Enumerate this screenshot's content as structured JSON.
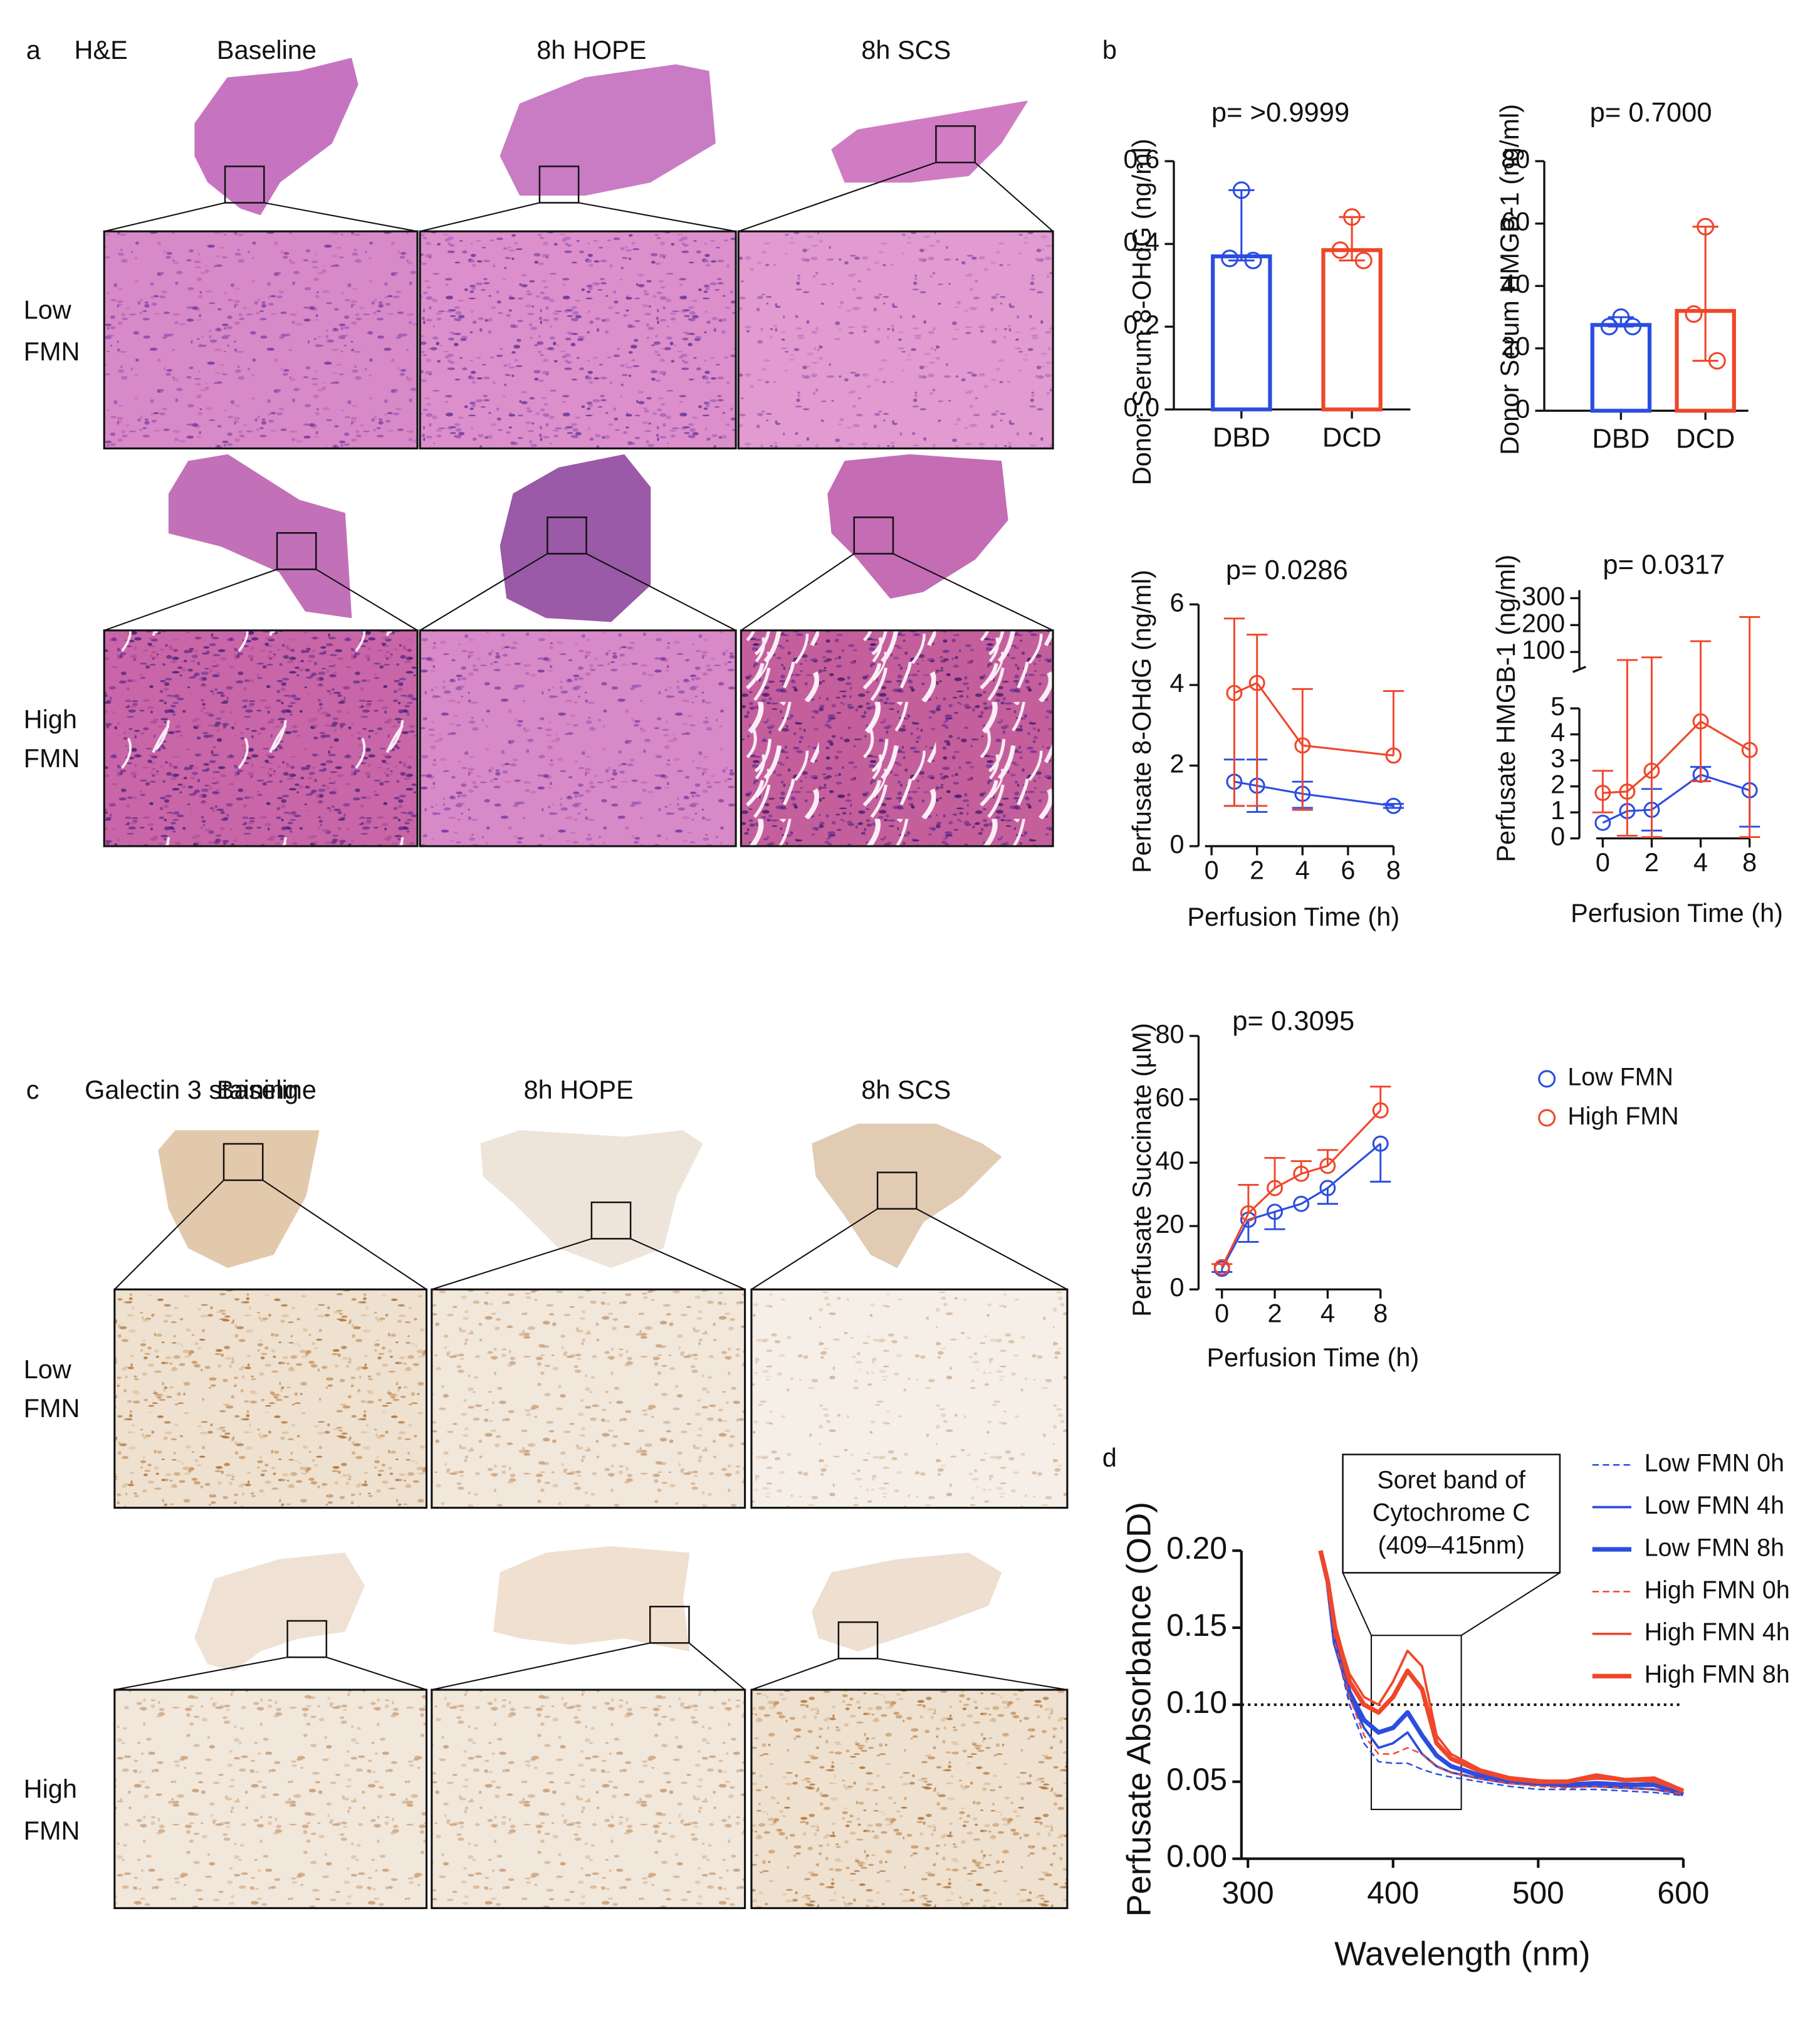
{
  "histology": [
    {
      "label": "a",
      "title": "H&E",
      "columns": [
        "Baseline",
        "8h HOPE",
        "8h SCS"
      ],
      "rows": [
        [
          "Low",
          "FMN"
        ],
        [
          "High",
          "FMN"
        ]
      ]
    },
    {
      "label": "c",
      "title": "Galectin 3 staining",
      "columns": [
        "Baseline",
        "8h HOPE",
        "8h SCS"
      ],
      "rows": [
        [
          "Low",
          "FMN"
        ],
        [
          "High",
          "FMN"
        ]
      ]
    }
  ],
  "panel_labels": [
    "b",
    "d"
  ],
  "chart_data": [
    {
      "type": "bar",
      "title": "p= >0.9999",
      "ylabel": "Donor Serum 8-OHdG (ng/ml)",
      "categories": [
        "DBD",
        "DCD"
      ],
      "values": [
        0.37,
        0.385
      ],
      "colors": [
        "#2b4de0",
        "#f0462a"
      ],
      "points": [
        [
          0.53,
          0.365,
          0.36
        ],
        [
          0.465,
          0.385,
          0.36
        ]
      ],
      "ylim": [
        0,
        0.6
      ],
      "yticks": [
        {
          "value": 0,
          "label": "0.0"
        },
        0.2,
        0.4,
        0.6
      ]
    },
    {
      "type": "bar",
      "title": "p= 0.7000",
      "ylabel": "Donor Serum HMGB-1 (ng/ml)",
      "categories": [
        "DBD",
        "DCD"
      ],
      "values": [
        27.5,
        32
      ],
      "colors": [
        "#2b4de0",
        "#f0462a"
      ],
      "points": [
        [
          30,
          27,
          27
        ],
        [
          59,
          31,
          16
        ]
      ],
      "ylim": [
        0,
        80
      ],
      "yticks": [
        0,
        20,
        40,
        60,
        80
      ]
    },
    {
      "type": "line",
      "title": "p= 0.0286",
      "xlabel": "Perfusion Time (h)",
      "ylabel": "Perfusate 8-OHdG (ng/ml)",
      "x": [
        1,
        2,
        4,
        8
      ],
      "markers": true,
      "series": [
        {
          "color": "#2b4de0",
          "values": [
            1.6,
            1.5,
            1.3,
            1.0
          ],
          "upper": [
            2.15,
            2.15,
            1.6,
            1.05
          ],
          "lower": [
            1.0,
            0.85,
            0.95,
            0.95
          ]
        },
        {
          "color": "#f0462a",
          "values": [
            3.8,
            4.05,
            2.5,
            2.25
          ],
          "upper": [
            5.65,
            5.25,
            3.9,
            3.85
          ],
          "lower": [
            1.0,
            1.0,
            0.9,
            null
          ]
        }
      ],
      "xlim": [
        0,
        8
      ],
      "xticks": [
        0,
        2,
        4,
        6,
        8
      ],
      "ylim": [
        0,
        6
      ],
      "yticks": [
        0,
        2,
        4,
        6
      ]
    },
    {
      "type": "line",
      "title": "p= 0.0317",
      "xlabel": "Perfusion Time (h)",
      "ylabel": "Perfusate HMGB-1 (ng/ml)",
      "x": [
        0,
        1,
        2,
        4,
        8
      ],
      "markers": true,
      "series": [
        {
          "color": "#2b4de0",
          "values": [
            0.6,
            1.05,
            1.1,
            2.45,
            1.85
          ],
          "upper": [
            null,
            null,
            1.9,
            2.75,
            null
          ],
          "lower": [
            null,
            null,
            0.3,
            2.2,
            0.45
          ]
        },
        {
          "color": "#f0462a",
          "values": [
            1.75,
            1.8,
            2.6,
            4.5,
            3.4
          ],
          "upper": [
            2.6,
            70,
            80,
            140,
            230
          ],
          "lower": [
            1.0,
            0.1,
            0.05,
            2.2,
            0.05
          ]
        }
      ],
      "xlim": [
        0,
        8
      ],
      "xticks": [
        0,
        2,
        4,
        8
      ],
      "ylim": [
        0,
        5
      ],
      "yticks": [
        0,
        1,
        2,
        3,
        4,
        5
      ],
      "ylim_upper": [
        40,
        330
      ],
      "yticks_upper": [
        100,
        200,
        300
      ]
    },
    {
      "type": "line",
      "title": "p= 0.3095",
      "xlabel": "Perfusion Time (h)",
      "ylabel": "Perfusate Succinate (µM)",
      "x": [
        0,
        1,
        2,
        3,
        4,
        8
      ],
      "markers": true,
      "series": [
        {
          "name": "Low FMN",
          "color": "#2b4de0",
          "values": [
            6.5,
            22,
            24.5,
            27,
            32,
            46
          ],
          "upper": [
            null,
            null,
            null,
            null,
            null,
            null
          ],
          "lower": [
            5.5,
            15,
            19,
            null,
            27,
            34
          ]
        },
        {
          "name": "High FMN",
          "color": "#f0462a",
          "values": [
            7,
            24,
            32,
            36.5,
            39,
            56.5
          ],
          "upper": [
            8,
            33,
            41.5,
            40.5,
            44,
            64
          ],
          "lower": [
            null,
            null,
            null,
            null,
            null,
            null
          ]
        }
      ],
      "xlim": [
        0,
        8
      ],
      "xticks": [
        0,
        2,
        4,
        8
      ],
      "ylim": [
        0,
        80
      ],
      "yticks": [
        0,
        20,
        40,
        60,
        80
      ]
    },
    {
      "type": "line",
      "xlabel": "Wavelength (nm)",
      "ylabel": "Perfusate Absorbance (OD)",
      "markers": false,
      "x": [
        350,
        355,
        360,
        370,
        380,
        390,
        400,
        410,
        420,
        430,
        440,
        460,
        480,
        500,
        520,
        540,
        560,
        580,
        600
      ],
      "series": [
        {
          "name": "Low FMN 0h",
          "color": "#2b4de0",
          "line_width": 1.2,
          "dashed": true,
          "values": [
            0.2,
            0.18,
            0.14,
            0.1,
            0.075,
            0.063,
            0.062,
            0.062,
            0.058,
            0.055,
            0.053,
            0.05,
            0.047,
            0.045,
            0.045,
            0.045,
            0.044,
            0.043,
            0.041
          ]
        },
        {
          "name": "Low FMN 4h",
          "color": "#2b4de0",
          "line_width": 1.8,
          "dashed": false,
          "values": [
            0.2,
            0.18,
            0.14,
            0.105,
            0.085,
            0.072,
            0.075,
            0.082,
            0.068,
            0.06,
            0.056,
            0.052,
            0.049,
            0.048,
            0.047,
            0.047,
            0.046,
            0.045,
            0.042
          ]
        },
        {
          "name": "Low FMN 8h",
          "color": "#2b4de0",
          "line_width": 3.5,
          "dashed": false,
          "values": [
            0.2,
            0.18,
            0.14,
            0.108,
            0.09,
            0.082,
            0.085,
            0.095,
            0.08,
            0.067,
            0.06,
            0.054,
            0.05,
            0.049,
            0.048,
            0.049,
            0.048,
            0.048,
            0.042
          ]
        },
        {
          "name": "High FMN 0h",
          "color": "#f0462a",
          "line_width": 1.2,
          "dashed": true,
          "values": [
            0.2,
            0.178,
            0.14,
            0.105,
            0.08,
            0.068,
            0.068,
            0.072,
            0.068,
            0.06,
            0.056,
            0.052,
            0.049,
            0.047,
            0.046,
            0.047,
            0.046,
            0.045,
            0.042
          ]
        },
        {
          "name": "High FMN 4h",
          "color": "#f0462a",
          "line_width": 1.8,
          "dashed": false,
          "values": [
            0.2,
            0.18,
            0.15,
            0.12,
            0.105,
            0.1,
            0.115,
            0.135,
            0.125,
            0.08,
            0.068,
            0.058,
            0.053,
            0.051,
            0.05,
            0.052,
            0.051,
            0.05,
            0.044
          ]
        },
        {
          "name": "High FMN 8h",
          "color": "#f0462a",
          "line_width": 3.5,
          "dashed": false,
          "values": [
            0.2,
            0.18,
            0.15,
            0.115,
            0.1,
            0.095,
            0.105,
            0.122,
            0.11,
            0.075,
            0.065,
            0.057,
            0.052,
            0.05,
            0.05,
            0.054,
            0.051,
            0.052,
            0.044
          ]
        }
      ],
      "hline": 0.1,
      "annotation": [
        "Soret band of",
        "Cytochrome C",
        "(409–415nm)"
      ],
      "highlight": {
        "x": [
          385,
          447
        ],
        "y": [
          0.032,
          0.145
        ]
      },
      "xlim": [
        300,
        600
      ],
      "xticks": [
        300,
        400,
        500,
        600
      ],
      "ylim": [
        0,
        0.2
      ],
      "yticks": [
        {
          "value": 0,
          "label": "0.00"
        },
        {
          "value": 0.05,
          "label": "0.05"
        },
        {
          "value": 0.1,
          "label": "0.10"
        },
        {
          "value": 0.15,
          "label": "0.15"
        },
        {
          "value": 0.2,
          "label": "0.20"
        }
      ]
    }
  ]
}
